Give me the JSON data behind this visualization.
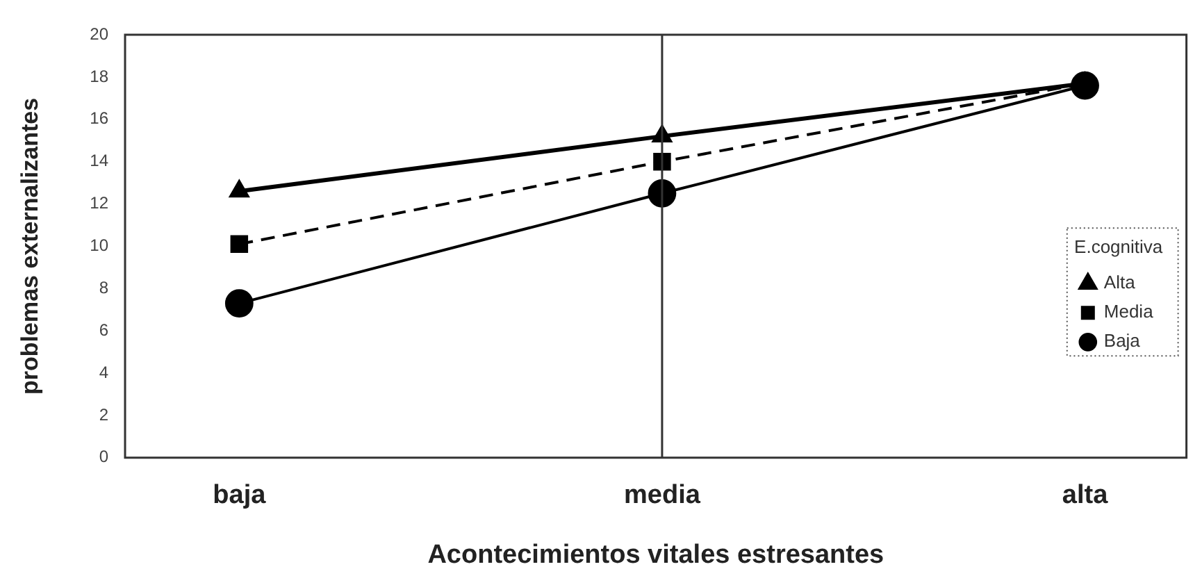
{
  "chart_data": {
    "type": "line",
    "xlabel": "Acontecimientos vitales estresantes",
    "ylabel": "problemas externalizantes",
    "legend_title": "E.cognitiva",
    "categories": [
      "baja",
      "media",
      "alta"
    ],
    "series": [
      {
        "name": "Alta",
        "color": "#000000",
        "values": [
          12.6,
          15.2,
          17.7
        ],
        "marker": "triangle",
        "line_style": "solid"
      },
      {
        "name": "Media",
        "color": "#000000",
        "values": [
          10.1,
          14.0,
          17.7
        ],
        "marker": "square",
        "line_style": "dashed"
      },
      {
        "name": "Baja",
        "color": "#000000",
        "values": [
          7.3,
          12.5,
          17.6
        ],
        "marker": "circle",
        "line_style": "solid"
      }
    ],
    "ylim": [
      0,
      20
    ],
    "yticks": [
      0,
      2,
      4,
      6,
      8,
      10,
      12,
      14,
      16,
      18,
      20
    ],
    "grid": false,
    "legend": "right",
    "ref_lines": [
      {
        "axis": "x",
        "value": "media"
      }
    ]
  }
}
